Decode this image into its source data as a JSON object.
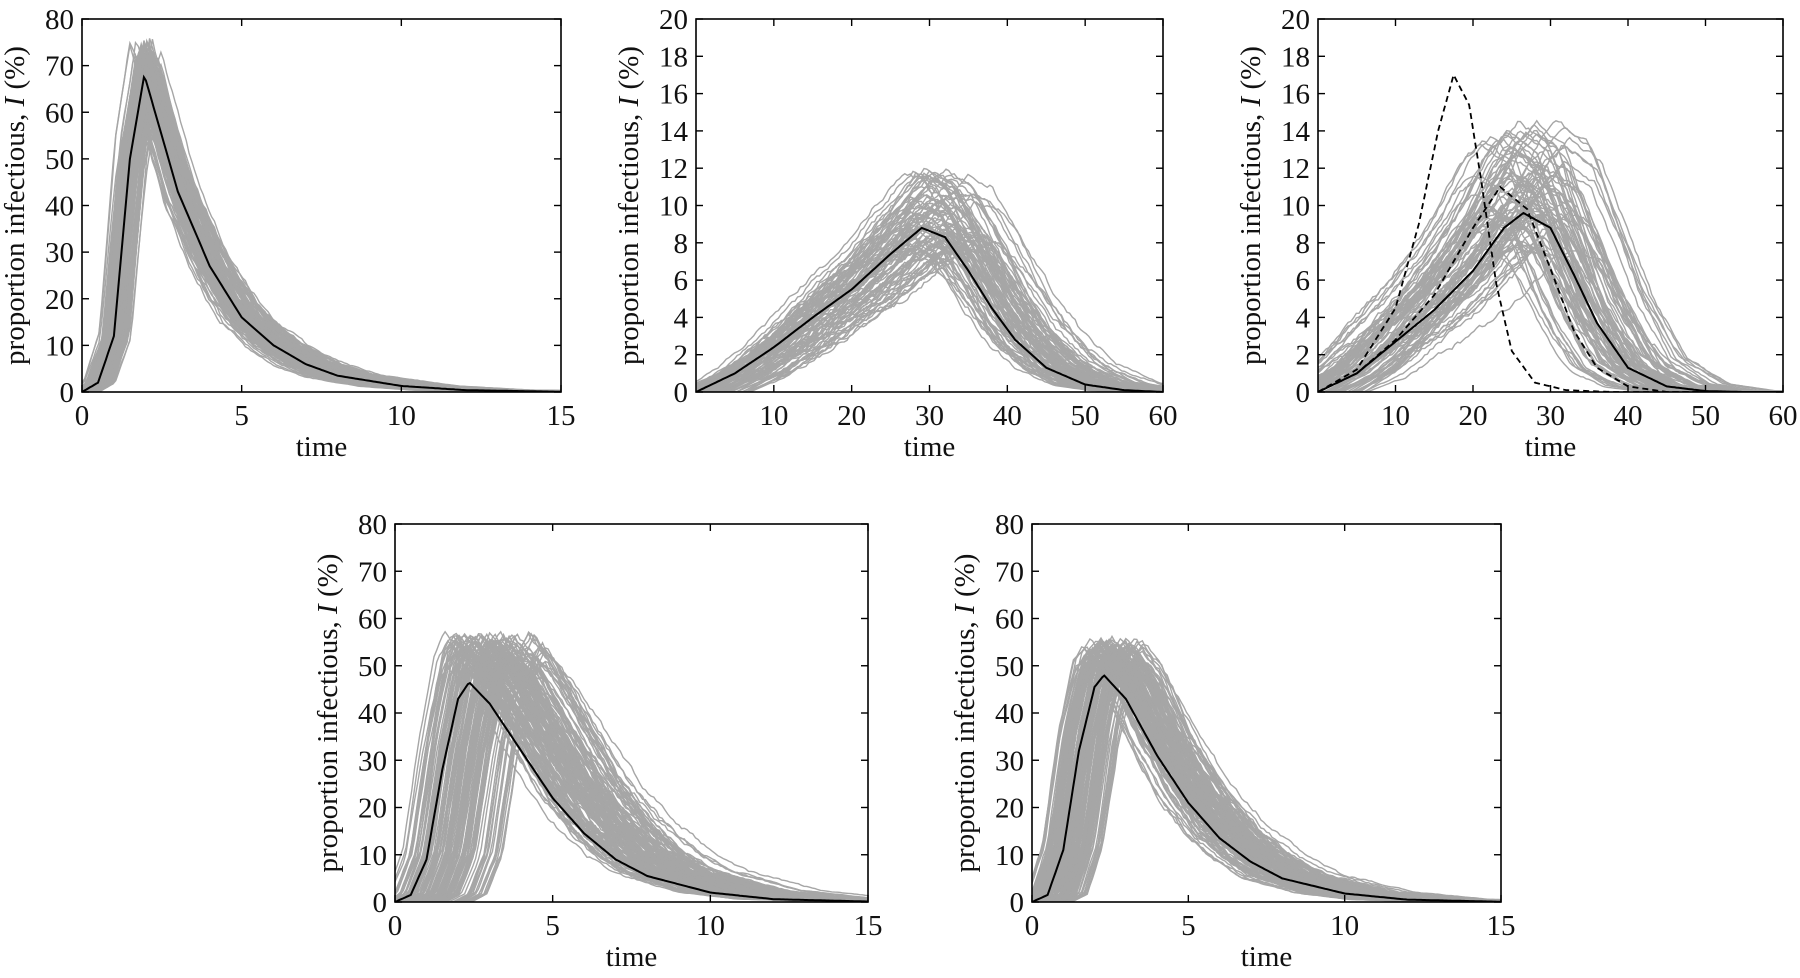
{
  "colors": {
    "runs": "#a6a6a6",
    "mean": "#000000",
    "axis": "#000000"
  },
  "chart_data": [
    {
      "type": "line",
      "xlabel": "time",
      "ylabel": {
        "prefix": "proportion infectious, ",
        "symbol": "I",
        "suffix": " (%)"
      },
      "xlim": [
        0,
        15
      ],
      "ylim": [
        0,
        80
      ],
      "xticks": [
        0,
        5,
        10,
        15
      ],
      "yticks": [
        0,
        10,
        20,
        30,
        40,
        50,
        60,
        70,
        80
      ],
      "grid": false,
      "runs": {
        "count": 150,
        "peak_time_range": [
          1.5,
          2.5
        ],
        "peak_value_range": [
          63,
          76
        ]
      },
      "series": [
        {
          "style": "mean",
          "peak_time": 1.95,
          "peak_value": 68,
          "x": [
            0,
            0.5,
            1,
            1.5,
            1.95,
            2.5,
            3,
            4,
            5,
            6,
            7,
            8,
            10,
            12,
            15
          ],
          "y": [
            0,
            2,
            12,
            50,
            68,
            55,
            43,
            27,
            16,
            10,
            6,
            3.5,
            1.3,
            0.4,
            0.05
          ]
        }
      ]
    },
    {
      "type": "line",
      "xlabel": "time",
      "ylabel": {
        "prefix": "proportion infectious, ",
        "symbol": "I",
        "suffix": " (%)"
      },
      "xlim": [
        0,
        60
      ],
      "ylim": [
        0,
        20
      ],
      "xticks": [
        10,
        20,
        30,
        40,
        50,
        60
      ],
      "yticks": [
        0,
        2,
        4,
        6,
        8,
        10,
        12,
        14,
        16,
        18,
        20
      ],
      "grid": false,
      "runs": {
        "count": 90,
        "peak_time_range": [
          26,
          36
        ],
        "peak_value_range": [
          7.5,
          12
        ]
      },
      "series": [
        {
          "style": "mean",
          "peak_time": 29,
          "peak_value": 8.8,
          "x": [
            0,
            5,
            10,
            15,
            20,
            25,
            29,
            32,
            35,
            38,
            41,
            45,
            50,
            55,
            60
          ],
          "y": [
            0,
            1,
            2.4,
            4,
            5.5,
            7.4,
            8.8,
            8.3,
            6.5,
            4.5,
            2.8,
            1.3,
            0.4,
            0.1,
            0
          ]
        }
      ]
    },
    {
      "type": "line",
      "xlabel": "time",
      "ylabel": {
        "prefix": "proportion infectious, ",
        "symbol": "I",
        "suffix": " (%)"
      },
      "xlim": [
        0,
        60
      ],
      "ylim": [
        0,
        20
      ],
      "xticks": [
        10,
        20,
        30,
        40,
        50,
        60
      ],
      "yticks": [
        0,
        2,
        4,
        6,
        8,
        10,
        12,
        14,
        16,
        18,
        20
      ],
      "grid": false,
      "runs": {
        "count": 90,
        "peak_time_range": [
          20,
          33
        ],
        "peak_value_range": [
          7.5,
          14.5
        ]
      },
      "series": [
        {
          "style": "mean",
          "peak_time": 26.5,
          "peak_value": 9.6,
          "x": [
            0,
            5,
            10,
            15,
            20,
            24,
            26.5,
            30,
            33,
            36,
            40,
            45,
            50,
            55
          ],
          "y": [
            0,
            1,
            2.7,
            4.4,
            6.5,
            8.8,
            9.6,
            8.8,
            6.3,
            3.7,
            1.3,
            0.3,
            0.05,
            0
          ]
        },
        {
          "style": "dashed",
          "peak_time": 17.5,
          "peak_value": 17,
          "x": [
            0,
            5,
            10,
            13,
            15.5,
            17.5,
            19.5,
            21,
            23,
            25,
            28,
            32,
            38
          ],
          "y": [
            0,
            1.2,
            4.5,
            9,
            14,
            17,
            15.4,
            11.5,
            5.8,
            2.2,
            0.5,
            0.1,
            0
          ]
        },
        {
          "style": "dashed",
          "peak_time": 23.5,
          "peak_value": 11,
          "x": [
            0,
            5,
            10,
            15,
            20,
            23.5,
            27,
            30,
            33,
            36,
            40,
            45
          ],
          "y": [
            0,
            1,
            2.8,
            5.2,
            8.8,
            11,
            9.8,
            6.6,
            3.3,
            1.3,
            0.3,
            0
          ]
        }
      ]
    },
    {
      "type": "line",
      "xlabel": "time",
      "ylabel": {
        "prefix": "proportion infectious, ",
        "symbol": "I",
        "suffix": " (%)"
      },
      "xlim": [
        0,
        15
      ],
      "ylim": [
        0,
        80
      ],
      "xticks": [
        0,
        5,
        10,
        15
      ],
      "yticks": [
        0,
        10,
        20,
        30,
        40,
        50,
        60,
        70,
        80
      ],
      "grid": false,
      "runs": {
        "count": 150,
        "peak_time_range": [
          1.6,
          4.8
        ],
        "peak_value_range": [
          50,
          57
        ]
      },
      "series": [
        {
          "style": "mean",
          "peak_time": 2.35,
          "peak_value": 46.5,
          "x": [
            0,
            0.5,
            1,
            1.5,
            2,
            2.35,
            3,
            4,
            5,
            6,
            7,
            8,
            10,
            12,
            15
          ],
          "y": [
            0,
            1.5,
            9,
            28,
            43,
            46.5,
            42,
            32,
            22,
            14.5,
            9,
            5.5,
            2,
            0.6,
            0.1
          ]
        }
      ]
    },
    {
      "type": "line",
      "xlabel": "time",
      "ylabel": {
        "prefix": "proportion infectious, ",
        "symbol": "I",
        "suffix": " (%)"
      },
      "xlim": [
        0,
        15
      ],
      "ylim": [
        0,
        80
      ],
      "xticks": [
        0,
        5,
        10,
        15
      ],
      "yticks": [
        0,
        10,
        20,
        30,
        40,
        50,
        60,
        70,
        80
      ],
      "grid": false,
      "runs": {
        "count": 150,
        "peak_time_range": [
          1.5,
          3.6
        ],
        "peak_value_range": [
          50,
          56
        ]
      },
      "series": [
        {
          "style": "mean",
          "peak_time": 2.3,
          "peak_value": 48,
          "x": [
            0,
            0.5,
            1,
            1.5,
            2,
            2.3,
            3,
            4,
            5,
            6,
            7,
            8,
            10,
            12,
            15
          ],
          "y": [
            0,
            1.5,
            11,
            32,
            45.5,
            48,
            43,
            31,
            21,
            13.5,
            8.5,
            5,
            1.8,
            0.5,
            0.05
          ]
        }
      ]
    }
  ]
}
